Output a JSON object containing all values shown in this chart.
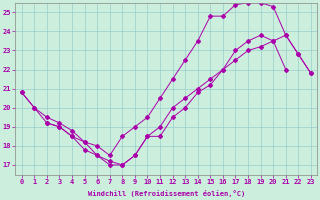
{
  "xlabel": "Windchill (Refroidissement éolien,°C)",
  "xlim": [
    -0.5,
    23.5
  ],
  "ylim": [
    16.5,
    25.5
  ],
  "yticks": [
    17,
    18,
    19,
    20,
    21,
    22,
    23,
    24,
    25
  ],
  "xticks": [
    0,
    1,
    2,
    3,
    4,
    5,
    6,
    7,
    8,
    9,
    10,
    11,
    12,
    13,
    14,
    15,
    16,
    17,
    18,
    19,
    20,
    21,
    22,
    23
  ],
  "line_color": "#aa00aa",
  "bg_color": "#cceedd",
  "grid_color": "#99cccc",
  "line1_x": [
    0,
    1,
    2,
    3,
    4,
    5,
    6,
    7,
    8,
    9,
    10,
    11,
    12,
    13,
    14,
    15,
    16,
    17,
    18,
    19,
    20,
    21,
    22,
    23
  ],
  "line1_y": [
    20.8,
    20.0,
    19.2,
    19.0,
    18.5,
    18.2,
    18.0,
    17.5,
    18.5,
    19.0,
    19.5,
    20.5,
    21.5,
    22.5,
    23.5,
    24.8,
    24.8,
    25.4,
    25.5,
    25.5,
    25.3,
    23.8,
    22.8,
    21.8
  ],
  "line2_x": [
    0,
    1,
    2,
    3,
    4,
    5,
    6,
    7,
    8,
    9,
    10,
    11,
    12,
    13,
    14,
    15,
    16,
    17,
    18,
    19,
    20,
    21
  ],
  "line2_y": [
    20.8,
    20.0,
    19.5,
    19.2,
    18.8,
    18.2,
    17.5,
    17.0,
    17.0,
    17.5,
    18.5,
    18.5,
    19.5,
    20.0,
    20.8,
    21.2,
    22.0,
    23.0,
    23.5,
    23.8,
    23.5,
    22.0
  ],
  "line3_x": [
    2,
    3,
    4,
    5,
    6,
    7,
    8,
    9,
    10,
    11,
    12,
    13,
    14,
    15,
    16,
    17,
    18,
    19,
    20,
    21,
    22,
    23
  ],
  "line3_y": [
    19.2,
    19.0,
    18.5,
    17.8,
    17.5,
    17.2,
    17.0,
    17.5,
    18.5,
    19.0,
    20.0,
    20.5,
    21.0,
    21.5,
    22.0,
    22.5,
    23.0,
    23.2,
    23.5,
    23.8,
    22.8,
    21.8
  ]
}
